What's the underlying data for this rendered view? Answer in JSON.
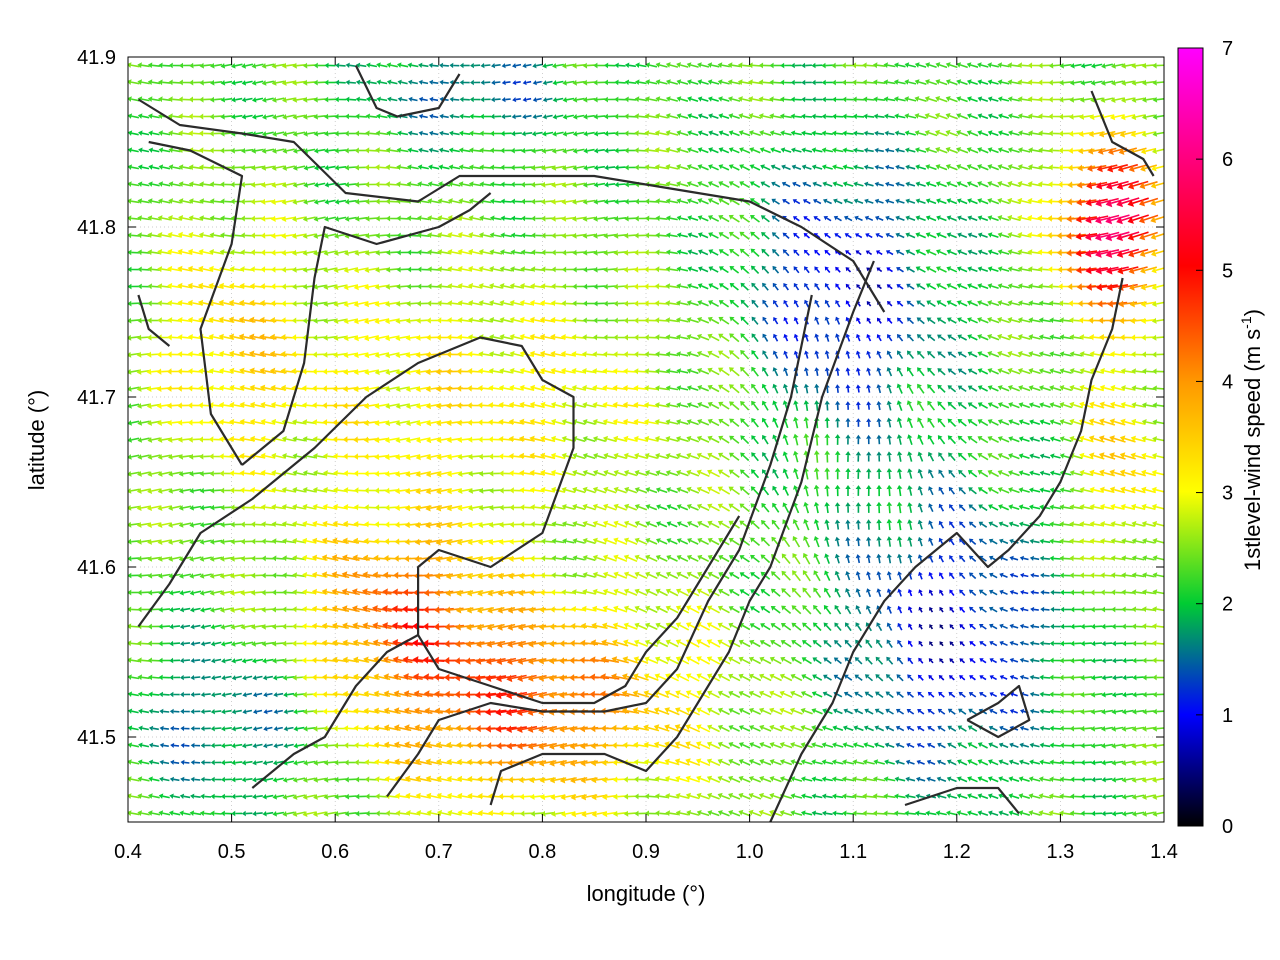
{
  "chart_data": {
    "type": "vector-field",
    "xlabel": "longitude (°)",
    "ylabel": "latitude (°)",
    "xlim": [
      0.4,
      1.4
    ],
    "ylim": [
      41.45,
      41.9
    ],
    "x_ticks": [
      "0.4",
      "0.5",
      "0.6",
      "0.7",
      "0.8",
      "0.9",
      "1.0",
      "1.1",
      "1.2",
      "1.3",
      "1.4"
    ],
    "x_tick_values": [
      0.4,
      0.5,
      0.6,
      0.7,
      0.8,
      0.9,
      1.0,
      1.1,
      1.2,
      1.3,
      1.4
    ],
    "y_ticks": [
      "41.5",
      "41.6",
      "41.7",
      "41.8",
      "41.9"
    ],
    "y_tick_values": [
      41.5,
      41.6,
      41.7,
      41.8,
      41.9
    ],
    "colorbar": {
      "label_main": "1stlevel-wind speed (m s",
      "label_sup": "-1",
      "label_end": ")",
      "range": [
        0,
        7
      ],
      "ticks": [
        "0",
        "1",
        "2",
        "3",
        "4",
        "5",
        "6",
        "7"
      ],
      "tick_values": [
        0,
        1,
        2,
        3,
        4,
        5,
        6,
        7
      ],
      "colors": [
        "#000000",
        "#0000ff",
        "#00cc33",
        "#ffff00",
        "#ff9900",
        "#ff0000",
        "#ff00ff"
      ]
    },
    "grid": "on",
    "legend": "none",
    "field_grid": {
      "lon_step": 0.01,
      "lat_step": 0.01
    },
    "contours": [
      {
        "name": "terrain-contour-west-ridge",
        "points": [
          [
            0.41,
            41.76
          ],
          [
            0.42,
            41.74
          ],
          [
            0.44,
            41.73
          ]
        ]
      },
      {
        "name": "terrain-contour-west-basin",
        "points": [
          [
            0.51,
            41.66
          ],
          [
            0.48,
            41.69
          ],
          [
            0.47,
            41.74
          ],
          [
            0.5,
            41.79
          ],
          [
            0.51,
            41.83
          ],
          [
            0.46,
            41.845
          ],
          [
            0.42,
            41.85
          ]
        ]
      },
      {
        "name": "terrain-contour-west-basin-inner",
        "points": [
          [
            0.51,
            41.66
          ],
          [
            0.55,
            41.68
          ],
          [
            0.57,
            41.72
          ],
          [
            0.58,
            41.77
          ],
          [
            0.59,
            41.8
          ],
          [
            0.64,
            41.79
          ],
          [
            0.7,
            41.8
          ],
          [
            0.73,
            41.81
          ],
          [
            0.75,
            41.82
          ]
        ]
      },
      {
        "name": "terrain-contour-north-1",
        "points": [
          [
            0.41,
            41.875
          ],
          [
            0.45,
            41.86
          ],
          [
            0.51,
            41.855
          ],
          [
            0.56,
            41.85
          ],
          [
            0.61,
            41.82
          ],
          [
            0.68,
            41.815
          ],
          [
            0.72,
            41.83
          ],
          [
            0.78,
            41.83
          ],
          [
            0.85,
            41.83
          ],
          [
            0.9,
            41.825
          ],
          [
            0.95,
            41.82
          ],
          [
            1.0,
            41.815
          ],
          [
            1.05,
            41.8
          ],
          [
            1.1,
            41.78
          ],
          [
            1.13,
            41.75
          ]
        ]
      },
      {
        "name": "terrain-contour-north-2",
        "points": [
          [
            0.62,
            41.895
          ],
          [
            0.64,
            41.87
          ],
          [
            0.66,
            41.865
          ],
          [
            0.7,
            41.87
          ],
          [
            0.72,
            41.89
          ]
        ]
      },
      {
        "name": "terrain-contour-central-south",
        "points": [
          [
            0.41,
            41.565
          ],
          [
            0.44,
            41.59
          ],
          [
            0.47,
            41.62
          ],
          [
            0.52,
            41.64
          ],
          [
            0.58,
            41.67
          ],
          [
            0.63,
            41.7
          ],
          [
            0.68,
            41.72
          ],
          [
            0.74,
            41.735
          ],
          [
            0.78,
            41.73
          ],
          [
            0.8,
            41.71
          ],
          [
            0.83,
            41.7
          ],
          [
            0.83,
            41.67
          ],
          [
            0.8,
            41.62
          ],
          [
            0.75,
            41.6
          ],
          [
            0.7,
            41.61
          ],
          [
            0.68,
            41.6
          ],
          [
            0.68,
            41.56
          ],
          [
            0.7,
            41.54
          ],
          [
            0.75,
            41.53
          ],
          [
            0.8,
            41.52
          ],
          [
            0.85,
            41.52
          ],
          [
            0.88,
            41.53
          ],
          [
            0.9,
            41.55
          ],
          [
            0.93,
            41.57
          ],
          [
            0.96,
            41.6
          ],
          [
            0.99,
            41.63
          ]
        ]
      },
      {
        "name": "terrain-contour-south-ridge",
        "points": [
          [
            0.52,
            41.47
          ],
          [
            0.56,
            41.49
          ],
          [
            0.59,
            41.5
          ],
          [
            0.62,
            41.53
          ],
          [
            0.65,
            41.55
          ],
          [
            0.68,
            41.56
          ]
        ]
      },
      {
        "name": "terrain-contour-south-valley",
        "points": [
          [
            0.65,
            41.465
          ],
          [
            0.68,
            41.49
          ],
          [
            0.7,
            41.51
          ],
          [
            0.75,
            41.52
          ],
          [
            0.8,
            41.515
          ],
          [
            0.86,
            41.515
          ],
          [
            0.9,
            41.52
          ],
          [
            0.93,
            41.54
          ],
          [
            0.96,
            41.58
          ],
          [
            0.99,
            41.61
          ],
          [
            1.02,
            41.66
          ],
          [
            1.04,
            41.7
          ],
          [
            1.05,
            41.73
          ],
          [
            1.06,
            41.76
          ]
        ]
      },
      {
        "name": "terrain-contour-south-inner",
        "points": [
          [
            0.75,
            41.46
          ],
          [
            0.76,
            41.48
          ],
          [
            0.8,
            41.49
          ],
          [
            0.86,
            41.49
          ],
          [
            0.9,
            41.48
          ],
          [
            0.93,
            41.5
          ],
          [
            0.95,
            41.52
          ],
          [
            0.98,
            41.55
          ],
          [
            1.0,
            41.58
          ],
          [
            1.02,
            41.6
          ],
          [
            1.05,
            41.65
          ],
          [
            1.07,
            41.7
          ],
          [
            1.1,
            41.75
          ],
          [
            1.12,
            41.78
          ]
        ]
      },
      {
        "name": "terrain-contour-east-coast",
        "points": [
          [
            1.02,
            41.45
          ],
          [
            1.05,
            41.49
          ],
          [
            1.08,
            41.52
          ],
          [
            1.1,
            41.55
          ],
          [
            1.13,
            41.58
          ],
          [
            1.16,
            41.6
          ],
          [
            1.2,
            41.62
          ],
          [
            1.23,
            41.6
          ],
          [
            1.25,
            41.61
          ],
          [
            1.28,
            41.63
          ],
          [
            1.3,
            41.65
          ],
          [
            1.32,
            41.68
          ],
          [
            1.33,
            41.71
          ],
          [
            1.35,
            41.74
          ],
          [
            1.36,
            41.77
          ]
        ]
      },
      {
        "name": "terrain-contour-east-hill",
        "points": [
          [
            1.21,
            41.51
          ],
          [
            1.24,
            41.52
          ],
          [
            1.26,
            41.53
          ],
          [
            1.27,
            41.51
          ],
          [
            1.24,
            41.5
          ],
          [
            1.21,
            41.51
          ]
        ]
      },
      {
        "name": "terrain-contour-east-south",
        "points": [
          [
            1.15,
            41.46
          ],
          [
            1.2,
            41.47
          ],
          [
            1.24,
            41.47
          ],
          [
            1.26,
            41.455
          ]
        ]
      },
      {
        "name": "terrain-contour-northeast",
        "points": [
          [
            1.33,
            41.88
          ],
          [
            1.35,
            41.85
          ],
          [
            1.38,
            41.84
          ],
          [
            1.39,
            41.83
          ]
        ]
      }
    ]
  }
}
